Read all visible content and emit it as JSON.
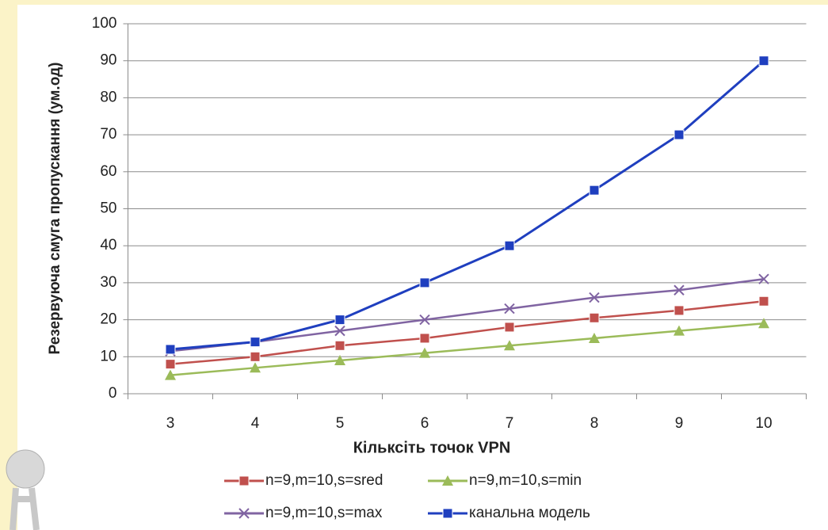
{
  "chart_data": {
    "type": "line",
    "x_label": "Кільксіть точок VPN",
    "y_label": "Резервуюча смуга пропускання (ум.од)",
    "categories": [
      "3",
      "4",
      "5",
      "6",
      "7",
      "8",
      "9",
      "10"
    ],
    "series": [
      {
        "name": "n=9,m=10,s=sred",
        "color": "#c0504d",
        "marker": "square",
        "values": [
          8,
          10,
          13,
          15,
          18,
          20.5,
          22.5,
          25
        ]
      },
      {
        "name": "n=9,m=10,s=min",
        "color": "#9bbb59",
        "marker": "triangle",
        "values": [
          5,
          7,
          9,
          11,
          13,
          15,
          17,
          19
        ]
      },
      {
        "name": "n=9,m=10,s=max",
        "color": "#8064a2",
        "marker": "cross",
        "values": [
          11.5,
          14,
          17,
          20,
          23,
          26,
          28,
          31
        ]
      },
      {
        "name": "канальна модель",
        "color": "#1f3fbf",
        "marker": "square",
        "values": [
          12,
          14,
          20,
          30,
          40,
          55,
          70,
          90
        ]
      }
    ],
    "ylim": [
      0,
      100
    ],
    "yticks": [
      0,
      10,
      20,
      30,
      40,
      50,
      60,
      70,
      80,
      90,
      100
    ],
    "grid": true
  }
}
